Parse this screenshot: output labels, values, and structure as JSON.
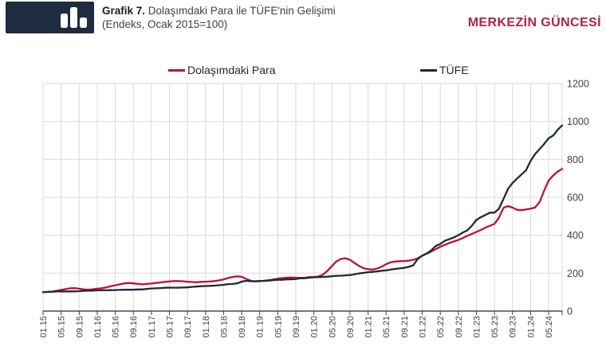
{
  "header": {
    "title_prefix": "Grafik 7.",
    "title_rest": " Dolaşımdaki Para ile TÜFE'nin Gelişimi",
    "title_line2": "(Endeks, Ocak 2015=100)",
    "brand": "MERKEZİN GÜNCESİ",
    "logo_icon": "bar-chart-icon"
  },
  "colors": {
    "money_line": "#be1038",
    "cpi_line": "#1b2a3b",
    "grid": "#d9d9d9",
    "axis": "#3a3a3a",
    "tick_text": "#3f3f3f",
    "brand_red": "#b12348",
    "logo_navy": "#1e2c40"
  },
  "chart_data": {
    "type": "line",
    "title": "Dolaşımdaki Para ile TÜFE'nin Gelişimi",
    "subtitle": "(Endeks, Ocak 2015=100)",
    "x_unit": "month",
    "x_range": [
      "01.15",
      "08.24"
    ],
    "months_per_tick": 4,
    "x_tick_labels": [
      "01.15",
      "05.15",
      "09.15",
      "01.16",
      "05.16",
      "09.16",
      "01.17",
      "05.17",
      "09.17",
      "01.18",
      "05.18",
      "09.18",
      "01.19",
      "05.19",
      "09.19",
      "01.20",
      "05.20",
      "09.20",
      "01.21",
      "05.21",
      "09.21",
      "01.22",
      "05.22",
      "09.22",
      "01.23",
      "05.23",
      "09.23",
      "01.24",
      "05.24"
    ],
    "ylim": [
      0,
      1200
    ],
    "y_ticks": [
      0,
      200,
      400,
      600,
      800,
      1000,
      1200
    ],
    "grid": true,
    "legend_position": "top",
    "series": [
      {
        "name": "Dolaşımdaki Para",
        "color": "#be1038",
        "values": [
          100,
          101,
          103,
          107,
          111,
          116,
          120,
          121,
          118,
          114,
          113,
          115,
          118,
          120,
          125,
          131,
          136,
          141,
          146,
          148,
          146,
          143,
          141,
          143,
          145,
          148,
          151,
          154,
          156,
          158,
          158,
          157,
          155,
          153,
          152,
          154,
          155,
          156,
          158,
          162,
          167,
          174,
          180,
          183,
          181,
          170,
          160,
          156,
          158,
          160,
          163,
          167,
          171,
          174,
          176,
          177,
          176,
          175,
          176,
          179,
          180,
          182,
          192,
          212,
          238,
          262,
          275,
          278,
          270,
          254,
          238,
          226,
          221,
          219,
          224,
          234,
          247,
          257,
          261,
          263,
          264,
          266,
          270,
          278,
          292,
          302,
          314,
          327,
          339,
          349,
          359,
          367,
          375,
          385,
          397,
          407,
          417,
          428,
          440,
          450,
          460,
          492,
          544,
          554,
          546,
          534,
          532,
          536,
          540,
          546,
          575,
          635,
          688,
          715,
          735,
          750
        ]
      },
      {
        "name": "TÜFE",
        "color": "#1b2a3b",
        "values": [
          100,
          100.7,
          101.9,
          103.5,
          104.1,
          103.6,
          103.6,
          104,
          104.9,
          106.6,
          107.3,
          107.6,
          109.4,
          109.4,
          109.4,
          110.2,
          110.9,
          111.4,
          112.6,
          112.3,
          112.5,
          114.1,
          114.3,
          116.8,
          119.1,
          120.2,
          121.4,
          123,
          123.6,
          123.2,
          123.4,
          124,
          124.9,
          127.4,
          129.3,
          130.7,
          132,
          133,
          134.3,
          136.4,
          138.6,
          142.1,
          142.9,
          146.2,
          155.2,
          159.4,
          157.2,
          157.2,
          158.8,
          159,
          160.7,
          163.4,
          165,
          165,
          167.3,
          167.5,
          169.2,
          172.8,
          173.4,
          175.8,
          178.2,
          178.8,
          179.8,
          181.4,
          183.8,
          185.8,
          186.8,
          188.4,
          190.2,
          194.2,
          198.6,
          201.5,
          205,
          206.9,
          209.2,
          212.7,
          214.6,
          218.7,
          222.5,
          225,
          227.9,
          233.2,
          241.4,
          274.2,
          292.5,
          303.5,
          320.3,
          343.3,
          353.5,
          370.4,
          379.3,
          388.2,
          400.1,
          414,
          426,
          450.4,
          480.3,
          495.4,
          506.8,
          518.9,
          519.1,
          539.4,
          590.6,
          644.3,
          674.9,
          698.1,
          721,
          742.1,
          791.8,
          827.7,
          853.8,
          881,
          910.7,
          925.6,
          955.5,
          979.1
        ]
      }
    ]
  }
}
